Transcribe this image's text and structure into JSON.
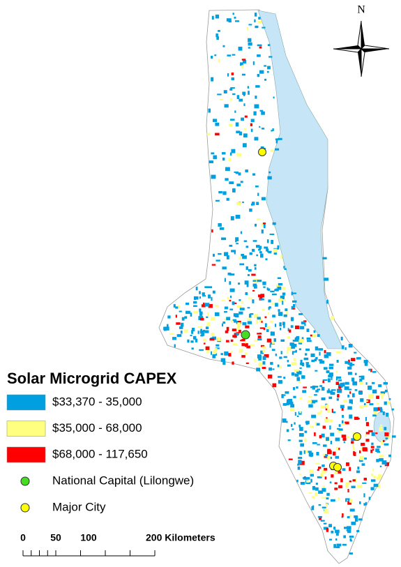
{
  "north_arrow": "N",
  "legend": {
    "title": "Solar Microgrid CAPEX",
    "items": [
      {
        "label": "$33,370 - 35,000",
        "color": "#00a0e0",
        "shape": "patch"
      },
      {
        "label": "$35,000 - 68,000",
        "color": "#ffff80",
        "shape": "patch"
      },
      {
        "label": "$68,000 - 117,650",
        "color": "#ff0000",
        "shape": "patch"
      },
      {
        "label": "National Capital (Lilongwe)",
        "color": "#44dd22",
        "shape": "point"
      },
      {
        "label": "Major City",
        "color": "#ffff00",
        "shape": "point"
      }
    ]
  },
  "scale_bar": {
    "labels": [
      "0",
      "50",
      "100",
      "200 Kilometers"
    ]
  }
}
